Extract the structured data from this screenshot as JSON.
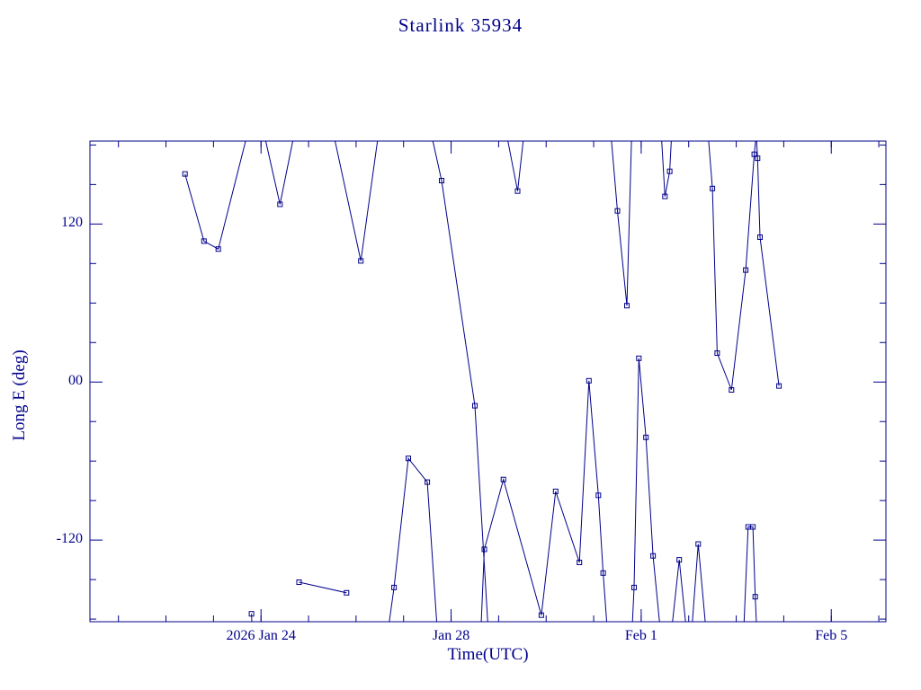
{
  "chart_data": {
    "type": "line",
    "title": "Starlink 35934",
    "xlabel": "Time(UTC)",
    "ylabel": "Long E (deg)",
    "x_units": "days (Jan 24 = 4, Jan 28 = 8, Feb 1 = 12, Feb 5 = 16)",
    "xlim": [
      0.4,
      17.15
    ],
    "ylim": [
      -182,
      183
    ],
    "xticks": [
      {
        "day": 4,
        "label": "2026 Jan 24"
      },
      {
        "day": 8,
        "label": "Jan 28"
      },
      {
        "day": 12,
        "label": "Feb 1"
      },
      {
        "day": 16,
        "label": "Feb 5"
      }
    ],
    "xminor_step": 1,
    "yticks": [
      {
        "deg": 120,
        "label": "120"
      },
      {
        "deg": 0,
        "label": "00"
      },
      {
        "deg": -120,
        "label": "-120"
      }
    ],
    "yminor_step": 30,
    "line_color": "#00008b",
    "text_color": "#00008b",
    "background": "#ffffff",
    "marker": "open-square",
    "points": [
      [
        2.4,
        158
      ],
      [
        2.8,
        107
      ],
      [
        3.1,
        101
      ],
      [
        4.4,
        135
      ],
      [
        6.1,
        92
      ],
      [
        7.8,
        153
      ],
      [
        8.5,
        -18
      ],
      [
        9.4,
        145
      ],
      [
        3.8,
        -176
      ],
      [
        4.8,
        -152
      ],
      [
        5.8,
        -160
      ],
      [
        6.8,
        -156
      ],
      [
        7.1,
        -58
      ],
      [
        7.5,
        -76
      ],
      [
        8.7,
        -127
      ],
      [
        9.1,
        -74
      ],
      [
        9.9,
        -177
      ],
      [
        10.2,
        -83
      ],
      [
        10.7,
        -137
      ],
      [
        10.9,
        1
      ],
      [
        11.1,
        -86
      ],
      [
        11.2,
        -145
      ],
      [
        11.5,
        130
      ],
      [
        11.7,
        58
      ],
      [
        11.85,
        -156
      ],
      [
        11.95,
        18
      ],
      [
        12.1,
        -42
      ],
      [
        12.25,
        -132
      ],
      [
        12.5,
        141
      ],
      [
        12.6,
        160
      ],
      [
        12.8,
        -135
      ],
      [
        13.2,
        -123
      ],
      [
        13.5,
        147
      ],
      [
        13.6,
        22
      ],
      [
        13.9,
        -6
      ],
      [
        14.2,
        85
      ],
      [
        14.38,
        173
      ],
      [
        14.45,
        170
      ],
      [
        14.5,
        110
      ],
      [
        14.9,
        -3
      ],
      [
        14.25,
        -110
      ],
      [
        14.35,
        -110
      ],
      [
        14.4,
        -163
      ]
    ],
    "segments": [
      [
        [
          2.4,
          158
        ],
        [
          2.8,
          107
        ],
        [
          3.1,
          101
        ],
        [
          3.9,
          215
        ],
        [
          4.4,
          135
        ],
        [
          5.1,
          260
        ],
        [
          6.1,
          92
        ],
        [
          6.9,
          300
        ],
        [
          7.8,
          153
        ],
        [
          8.5,
          -18
        ],
        [
          8.8,
          -200
        ]
      ],
      [
        [
          9.05,
          210
        ],
        [
          9.4,
          145
        ],
        [
          9.6,
          210
        ]
      ],
      [
        [
          3.8,
          -176
        ],
        [
          3.82,
          -195
        ]
      ],
      [
        [
          4.8,
          -152
        ],
        [
          5.8,
          -160
        ]
      ],
      [
        [
          6.65,
          -195
        ],
        [
          6.8,
          -156
        ],
        [
          7.1,
          -58
        ],
        [
          7.5,
          -76
        ],
        [
          7.72,
          -195
        ]
      ],
      [
        [
          8.62,
          -195
        ],
        [
          8.7,
          -127
        ],
        [
          9.1,
          -74
        ],
        [
          9.9,
          -177
        ],
        [
          10.2,
          -83
        ],
        [
          10.7,
          -137
        ],
        [
          10.9,
          1
        ],
        [
          11.1,
          -86
        ],
        [
          11.2,
          -145
        ],
        [
          11.3,
          -195
        ]
      ],
      [
        [
          11.3,
          215
        ],
        [
          11.5,
          130
        ],
        [
          11.7,
          58
        ],
        [
          11.82,
          215
        ]
      ],
      [
        [
          11.8,
          -195
        ],
        [
          11.85,
          -156
        ],
        [
          11.95,
          18
        ],
        [
          12.1,
          -42
        ],
        [
          12.25,
          -132
        ],
        [
          12.42,
          -195
        ]
      ],
      [
        [
          12.38,
          215
        ],
        [
          12.5,
          141
        ],
        [
          12.6,
          160
        ],
        [
          12.68,
          215
        ]
      ],
      [
        [
          12.62,
          -195
        ],
        [
          12.8,
          -135
        ],
        [
          12.97,
          -195
        ]
      ],
      [
        [
          13.05,
          -195
        ],
        [
          13.2,
          -123
        ],
        [
          13.38,
          -195
        ]
      ],
      [
        [
          13.35,
          215
        ],
        [
          13.5,
          147
        ],
        [
          13.6,
          22
        ],
        [
          13.9,
          -6
        ],
        [
          14.2,
          85
        ],
        [
          14.38,
          173
        ],
        [
          14.42,
          188
        ],
        [
          14.45,
          170
        ],
        [
          14.5,
          110
        ],
        [
          14.9,
          -3
        ]
      ],
      [
        [
          14.15,
          -195
        ],
        [
          14.25,
          -110
        ],
        [
          14.35,
          -110
        ],
        [
          14.4,
          -163
        ],
        [
          14.44,
          -195
        ]
      ]
    ]
  }
}
